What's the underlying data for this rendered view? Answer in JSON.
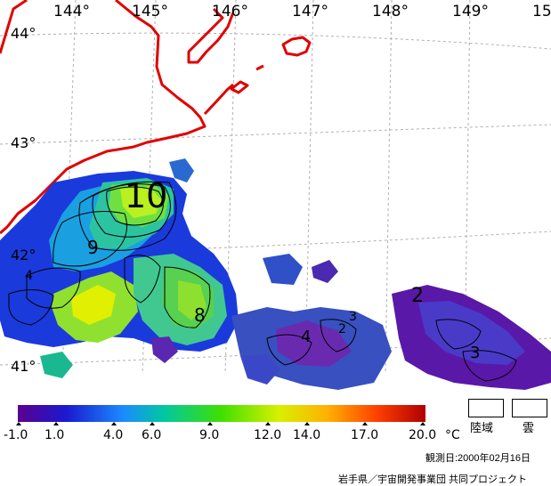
{
  "map": {
    "longitude_labels": [
      "144°",
      "145°",
      "146°",
      "147°",
      "148°",
      "149°",
      "15"
    ],
    "latitude_labels": [
      "44°",
      "43°",
      "42°",
      "41°"
    ],
    "contour_labels": [
      "10",
      "9",
      "8",
      "4",
      "2",
      "3",
      "2",
      "3",
      "4"
    ],
    "colors": {
      "coastline": "#e00000",
      "grid": "#b0b0b0",
      "contour": "#000000"
    }
  },
  "colorbar": {
    "min": -1.0,
    "max": 20.0,
    "ticks": [
      "-1.0",
      "1.0",
      "4.0",
      "6.0",
      "9.0",
      "12.0",
      "14.0",
      "17.0",
      "20.0"
    ],
    "unit": "°C",
    "gradient": [
      "#5a0090",
      "#1a1ad0",
      "#1a8cff",
      "#00c8a0",
      "#40e000",
      "#d8f000",
      "#ffb000",
      "#ff4000",
      "#b00000"
    ]
  },
  "legend": {
    "land": "陸域",
    "cloud": "雲"
  },
  "observation_date": "観測日:2000年02月16日",
  "credit": "岩手県／宇宙開発事業団 共同プロジェクト"
}
